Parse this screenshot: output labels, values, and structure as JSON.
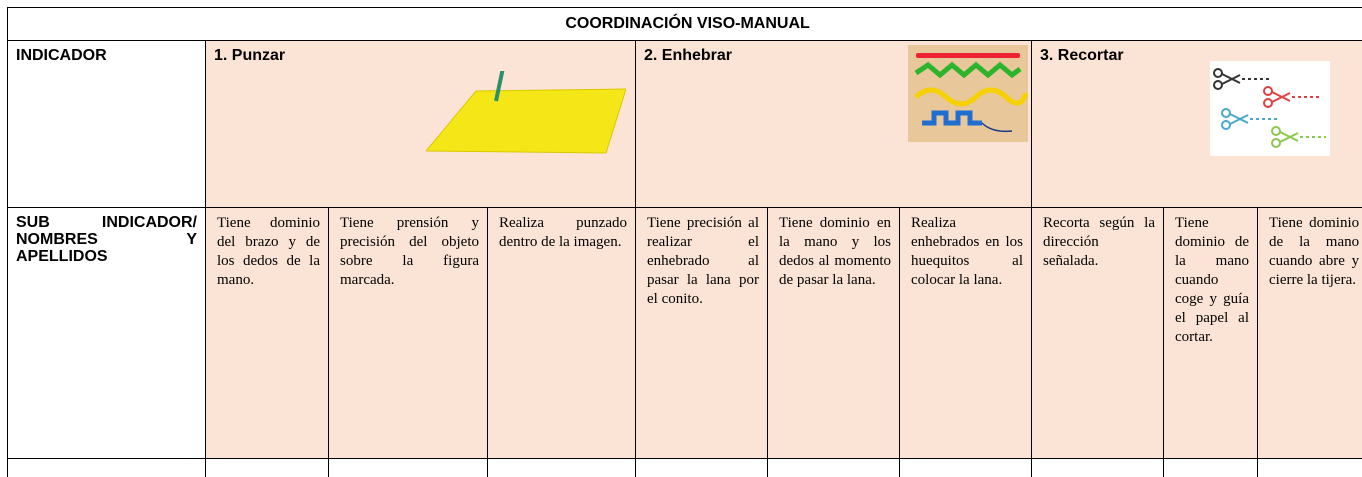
{
  "table": {
    "title": "COORDINACIÓN VISO-MANUAL",
    "indicator_label": "INDICADOR",
    "indicators": [
      "1. Punzar",
      "2. Enhebrar",
      "3. Recortar"
    ],
    "sub_indicator_label": "SUB INDICADOR/ NOMBRES Y APELLIDOS",
    "sub_indicators": [
      "Tiene dominio del brazo y de los dedos de la mano.",
      "Tiene prensión y precisión del objeto sobre la figura marcada.",
      "Realiza punzado dentro de la imagen.",
      "Tiene precisión al realizar el enhebrado al pasar la lana por el conito.",
      "Tiene dominio en la mano y los dedos al momento de pasar la lana.",
      "Realiza enhebrados en los huequitos al colocar la lana.",
      "Recorta según la dirección señalada.",
      "Tiene dominio de la mano cuando coge y guía el papel al cortar.",
      "Tiene dominio de la mano cuando abre y cierre la tijera."
    ]
  }
}
